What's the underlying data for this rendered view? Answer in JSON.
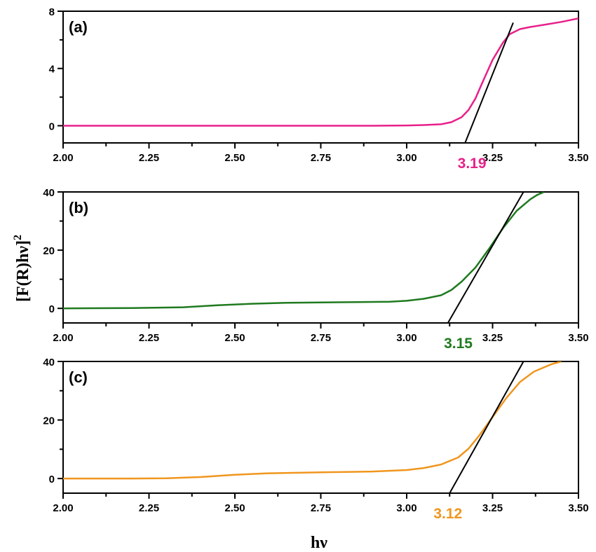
{
  "chart_data": {
    "type": "line",
    "xlabel": "hν",
    "ylabel": "[F(R)hν]",
    "ylabel_superscript": "2",
    "panels": [
      {
        "label": "(a)",
        "color": "#e8208a",
        "xlim": [
          2.0,
          3.5
        ],
        "ylim": [
          -1.2,
          8
        ],
        "x_ticks": [
          "2.00",
          "2.25",
          "2.50",
          "2.75",
          "3.00",
          "3.25",
          "3.50"
        ],
        "y_ticks": [
          "0",
          "4",
          "8"
        ],
        "bandgap_label": "3.19",
        "bandgap_value": 3.19,
        "tangent": [
          [
            3.17,
            -1.2
          ],
          [
            3.31,
            7.2
          ]
        ],
        "series": [
          {
            "x": [
              2.0,
              2.5,
              2.9,
              3.0,
              3.05,
              3.1,
              3.13,
              3.16,
              3.18,
              3.2,
              3.22,
              3.25,
              3.28,
              3.3,
              3.33,
              3.36,
              3.4,
              3.45,
              3.5
            ],
            "y": [
              0,
              0,
              0,
              0.02,
              0.05,
              0.1,
              0.25,
              0.6,
              1.1,
              1.9,
              3.0,
              4.6,
              5.8,
              6.4,
              6.75,
              6.9,
              7.05,
              7.25,
              7.5
            ]
          }
        ]
      },
      {
        "label": "(b)",
        "color": "#1f7a1f",
        "xlim": [
          2.0,
          3.5
        ],
        "ylim": [
          -5,
          40
        ],
        "x_ticks": [
          "2.00",
          "2.25",
          "2.50",
          "2.75",
          "3.00",
          "3.25",
          "3.50"
        ],
        "y_ticks": [
          "0",
          "20",
          "40"
        ],
        "bandgap_label": "3.15",
        "bandgap_value": 3.15,
        "tangent": [
          [
            3.12,
            -5
          ],
          [
            3.34,
            40
          ]
        ],
        "series": [
          {
            "x": [
              2.0,
              2.2,
              2.35,
              2.45,
              2.55,
              2.65,
              2.8,
              2.95,
              3.0,
              3.05,
              3.1,
              3.13,
              3.16,
              3.2,
              3.24,
              3.28,
              3.32,
              3.36,
              3.38,
              3.4
            ],
            "y": [
              0,
              0.1,
              0.4,
              1.1,
              1.6,
              1.9,
              2.1,
              2.3,
              2.6,
              3.3,
              4.5,
              6.3,
              9.2,
              14.0,
              20.5,
              27.5,
              33.5,
              37.5,
              39.0,
              40.0
            ]
          }
        ]
      },
      {
        "label": "(c)",
        "color": "#f0961e",
        "xlim": [
          2.0,
          3.5
        ],
        "ylim": [
          -5,
          40
        ],
        "x_ticks": [
          "2.00",
          "2.25",
          "2.50",
          "2.75",
          "3.00",
          "3.25",
          "3.50"
        ],
        "y_ticks": [
          "0",
          "20",
          "40"
        ],
        "bandgap_label": "3.12",
        "bandgap_value": 3.12,
        "tangent": [
          [
            3.125,
            -5
          ],
          [
            3.34,
            40
          ]
        ],
        "series": [
          {
            "x": [
              2.0,
              2.2,
              2.3,
              2.4,
              2.5,
              2.6,
              2.75,
              2.9,
              3.0,
              3.05,
              3.1,
              3.15,
              3.18,
              3.21,
              3.25,
              3.29,
              3.33,
              3.37,
              3.42,
              3.45
            ],
            "y": [
              0,
              0,
              0.1,
              0.5,
              1.3,
              1.8,
              2.1,
              2.4,
              2.9,
              3.6,
              4.8,
              7.2,
              10.2,
              14.5,
              21.0,
              27.5,
              33.0,
              36.5,
              39.0,
              40.0
            ]
          }
        ]
      }
    ]
  }
}
